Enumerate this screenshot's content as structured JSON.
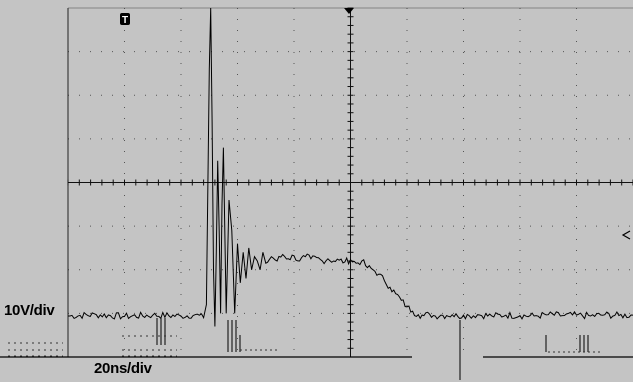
{
  "chart_data": {
    "type": "line",
    "title": "",
    "vertical_scale": "10V/div",
    "horizontal_scale": "20ns/div",
    "trigger_marker": "T",
    "grid": true,
    "grid_divisions": {
      "x": 10,
      "y": 8
    },
    "ylim": [
      -40,
      40
    ],
    "xlim": [
      -100,
      100
    ],
    "series": [
      {
        "x": [
          -100,
          -90,
          -80,
          -70,
          -60,
          -55,
          -52,
          -51,
          -50.5,
          -50,
          -49.5,
          -49,
          -48.5,
          -48,
          -47.5,
          -47,
          -46.5,
          -46,
          -45.5,
          -45,
          -44,
          -43,
          -42,
          -41,
          -40,
          -39,
          -38,
          -37,
          -36,
          -35,
          -34,
          -33,
          -32,
          -31,
          -30,
          -28,
          -26,
          -24,
          -22,
          -20,
          -18,
          -16,
          -14,
          -12,
          -10,
          -8,
          -6,
          -4,
          -2,
          0,
          2,
          4,
          6,
          8,
          10,
          12,
          14,
          16,
          18,
          20,
          22,
          24,
          26,
          28,
          30,
          32,
          34,
          36,
          38,
          40,
          42,
          45,
          50,
          55,
          60,
          65,
          70,
          75,
          80,
          85,
          90,
          95,
          100
        ],
        "y": [
          -30.6,
          -30.3,
          -30.7,
          -30.4,
          -30.6,
          -30.3,
          -31,
          -28,
          -2,
          26,
          40,
          14,
          -20,
          -33,
          -16,
          5,
          -10,
          -30,
          -5,
          8,
          -30,
          -4,
          -11,
          -30,
          -14,
          -23,
          -16,
          -22,
          -15,
          -20,
          -17,
          -18,
          -20,
          -16,
          -18.5,
          -17,
          -18,
          -16.5,
          -17.5,
          -16.8,
          -18,
          -17,
          -17.5,
          -17.2,
          -18,
          -17.5,
          -18,
          -17.8,
          -18.2,
          -17.7,
          -18.5,
          -18,
          -19.5,
          -20,
          -21,
          -22.5,
          -24,
          -25.5,
          -27,
          -28.5,
          -29.5,
          -30.3,
          -30.5,
          -30.2,
          -30.6,
          -30.4,
          -30.5,
          -30.3,
          -30.7,
          -30.4,
          -30.5,
          -30.3,
          -30.6,
          -30.4,
          -30.5,
          -30.6,
          -30.3,
          -30.5,
          -30.4,
          -30.6,
          -30.3,
          -30.5,
          -30.4
        ]
      }
    ]
  }
}
